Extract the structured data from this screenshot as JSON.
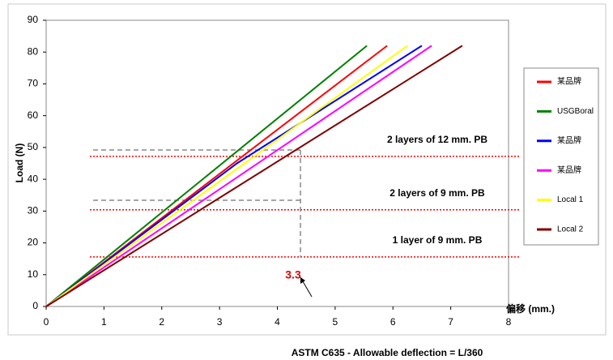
{
  "chart_data": {
    "type": "line",
    "x_label": "偏移 (mm.)",
    "y_label": "Load (N)",
    "caption": "ASTM C635 - Allowable deflection = L/360",
    "xlim": [
      0,
      8
    ],
    "xticks": [
      0,
      1,
      2,
      3,
      4,
      5,
      6,
      7,
      8
    ],
    "ylim": [
      0,
      90
    ],
    "yticks": [
      0,
      10,
      20,
      30,
      40,
      50,
      60,
      70,
      80,
      90
    ],
    "series": [
      {
        "name": "某品牌",
        "color": "#ff0000",
        "x": [
          0,
          5.9
        ],
        "values": [
          0,
          82
        ]
      },
      {
        "name": "USGBoral",
        "color": "#008000",
        "x": [
          0,
          5.55
        ],
        "values": [
          0,
          82
        ]
      },
      {
        "name": "某品牌",
        "color": "#0000ff",
        "x": [
          0,
          3.3,
          6.5
        ],
        "values": [
          0,
          45,
          82
        ]
      },
      {
        "name": "某品牌",
        "color": "#ff00ff",
        "x": [
          0,
          6.67
        ],
        "values": [
          0,
          82
        ]
      },
      {
        "name": "Local 1",
        "color": "#ffff00",
        "x": [
          0,
          6.25
        ],
        "values": [
          0,
          82
        ]
      },
      {
        "name": "Local 2",
        "color": "#800000",
        "x": [
          0,
          7.2
        ],
        "values": [
          0,
          82
        ]
      }
    ],
    "reference_lines": [
      {
        "value": 47.2,
        "label": "2 layers of 12 mm. PB"
      },
      {
        "value": 30.4,
        "label": "2 layers of 9 mm. PB"
      },
      {
        "value": 15.6,
        "label": "1 layer of 9 mm. PB"
      }
    ],
    "guides": [
      49.2,
      33.4
    ],
    "deflection_marker": {
      "value": 4.4,
      "label": "3.3"
    }
  }
}
